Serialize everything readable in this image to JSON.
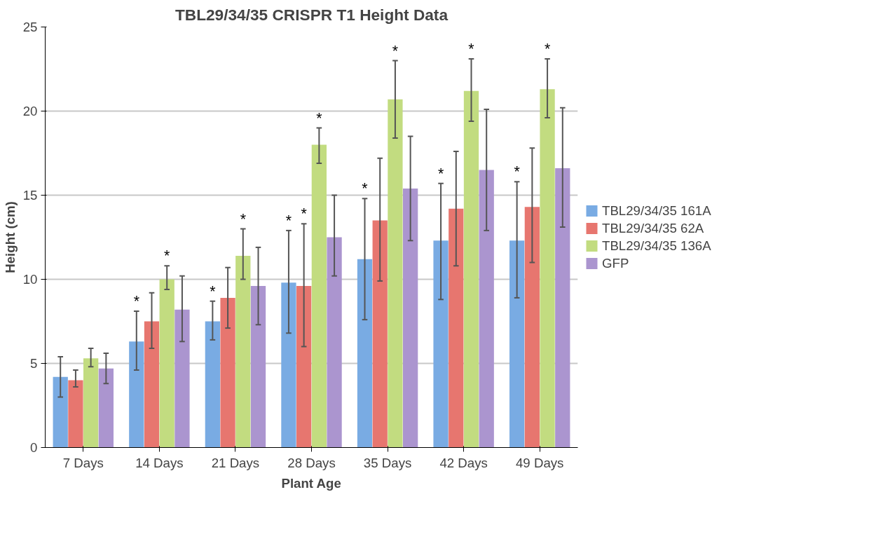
{
  "chart_data": {
    "type": "bar",
    "title": "TBL29/34/35 CRISPR T1 Height Data",
    "xlabel": "Plant Age",
    "ylabel": "Height (cm)",
    "categories": [
      "7 Days",
      "14 Days",
      "21 Days",
      "28 Days",
      "35 Days",
      "42 Days",
      "49 Days"
    ],
    "ylim": [
      0,
      25
    ],
    "yticks": [
      0,
      5,
      10,
      15,
      20,
      25
    ],
    "grid": "y",
    "legend": "right",
    "series": [
      {
        "name": "TBL29/34/35 161A",
        "color": "#79abe3",
        "values": [
          4.2,
          6.3,
          7.5,
          9.8,
          11.2,
          12.3,
          12.3
        ],
        "errors": [
          [
            3.0,
            5.4
          ],
          [
            4.6,
            8.1
          ],
          [
            6.4,
            8.7
          ],
          [
            6.8,
            12.9
          ],
          [
            7.6,
            14.8
          ],
          [
            8.8,
            15.7
          ],
          [
            8.9,
            15.8
          ]
        ]
      },
      {
        "name": "TBL29/34/35 62A",
        "color": "#e7766f",
        "values": [
          4.0,
          7.5,
          8.9,
          9.6,
          13.5,
          14.2,
          14.3
        ],
        "errors": [
          [
            3.6,
            4.6
          ],
          [
            5.9,
            9.2
          ],
          [
            7.1,
            10.7
          ],
          [
            6.0,
            13.3
          ],
          [
            9.9,
            17.2
          ],
          [
            10.8,
            17.6
          ],
          [
            11.0,
            17.8
          ]
        ]
      },
      {
        "name": "TBL29/34/35 136A",
        "color": "#c2dc80",
        "values": [
          5.3,
          10.0,
          11.4,
          18.0,
          20.7,
          21.2,
          21.3
        ],
        "errors": [
          [
            4.8,
            5.9
          ],
          [
            9.4,
            10.8
          ],
          [
            10.0,
            13.0
          ],
          [
            16.9,
            19.0
          ],
          [
            18.4,
            23.0
          ],
          [
            19.4,
            23.1
          ],
          [
            19.6,
            23.1
          ]
        ]
      },
      {
        "name": "GFP",
        "color": "#ab95cf",
        "values": [
          4.7,
          8.2,
          9.6,
          12.5,
          15.4,
          16.5,
          16.6
        ],
        "errors": [
          [
            3.8,
            5.6
          ],
          [
            6.3,
            10.2
          ],
          [
            7.3,
            11.9
          ],
          [
            10.2,
            15.0
          ],
          [
            12.3,
            18.5
          ],
          [
            12.9,
            20.1
          ],
          [
            13.1,
            20.2
          ]
        ]
      }
    ],
    "annotations": [
      {
        "text": "*",
        "x": "14 Days",
        "y": 8.1
      },
      {
        "text": "*",
        "x": "14 Days",
        "y": 10.0
      },
      {
        "text": "*",
        "x": "21 Days",
        "y": 8.7
      },
      {
        "text": "*",
        "x": "21 Days",
        "y": 11.4
      },
      {
        "text": "*",
        "x": "28 Days",
        "y": 12.9
      },
      {
        "text": "*",
        "x": "28 Days",
        "y": 13.3
      },
      {
        "text": "*",
        "x": "28 Days",
        "y": 18.0
      },
      {
        "text": "*",
        "x": "35 Days",
        "y": 14.8
      },
      {
        "text": "*",
        "x": "35 Days",
        "y": 20.7
      },
      {
        "text": "*",
        "x": "42 Days",
        "y": 15.7
      },
      {
        "text": "*",
        "x": "42 Days",
        "y": 21.2
      },
      {
        "text": "*",
        "x": "49 Days",
        "y": 15.8
      },
      {
        "text": "*",
        "x": "49 Days",
        "y": 21.3
      }
    ]
  }
}
